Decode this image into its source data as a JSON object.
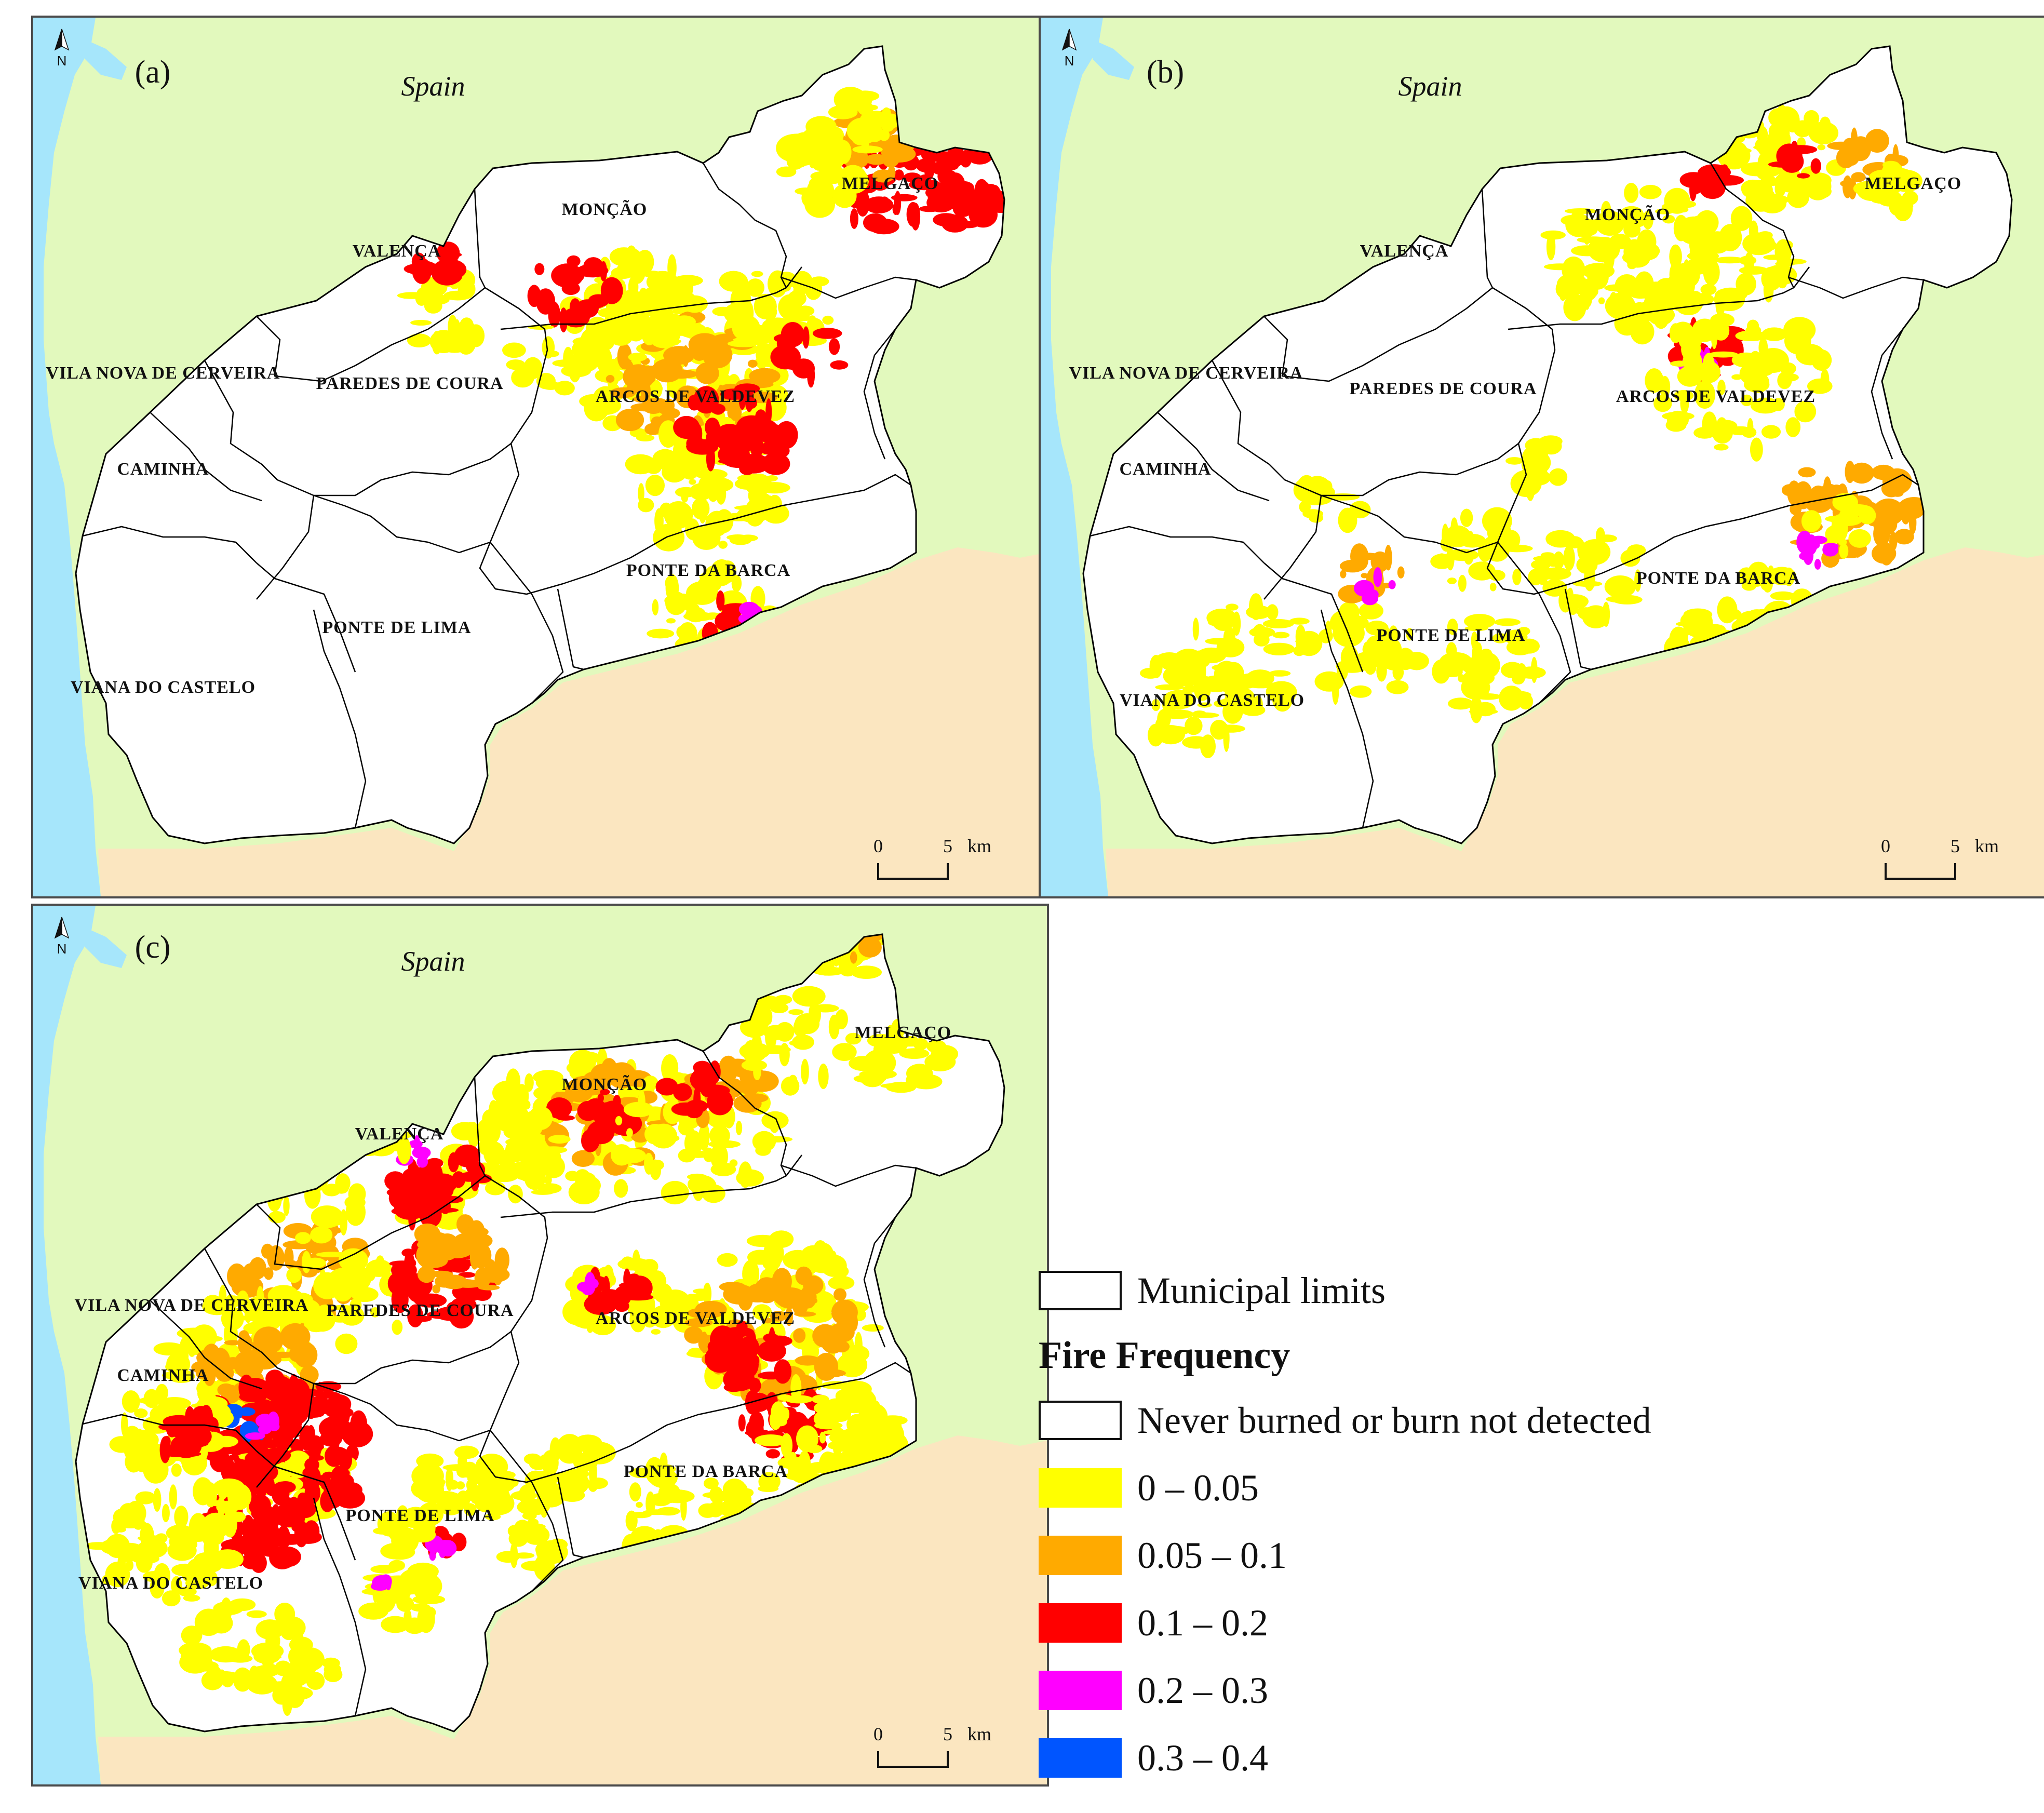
{
  "panels": [
    {
      "id": "a",
      "label": "(a)"
    },
    {
      "id": "b",
      "label": "(b)"
    },
    {
      "id": "c",
      "label": "(c)"
    }
  ],
  "country_label": "Spain",
  "north_label": "N",
  "scale": {
    "zero": "0",
    "five": "5",
    "unit": "km"
  },
  "municipalities": {
    "melgaco": "MELGAÇO",
    "moncao": "MONÇÃO",
    "valenca": "VALENÇA",
    "vila_nova": "VILA NOVA DE CERVEIRA",
    "paredes": "PAREDES DE COURA",
    "arcos": "ARCOS DE VALDEVEZ",
    "caminha": "CAMINHA",
    "ponte_barca": "PONTE DA BARCA",
    "ponte_lima": "PONTE DE LIMA",
    "viana": "VIANA DO CASTELO"
  },
  "legend": {
    "municipal_limits": "Municipal limits",
    "title": "Fire Frequency",
    "never": "Never burned or burn not detected",
    "classes": [
      {
        "label": "0 – 0.05",
        "color": "#ffff00"
      },
      {
        "label": "0.05 – 0.1",
        "color": "#ffaa00"
      },
      {
        "label": "0.1 – 0.2",
        "color": "#ff0000"
      },
      {
        "label": "0.2 – 0.3",
        "color": "#ff00ff"
      },
      {
        "label": "0.3 – 0.4",
        "color": "#0055ff"
      }
    ]
  },
  "colors": {
    "sea": "#a6e6fb",
    "spain": "#e2f9bd",
    "portugal_south": "#fbe6c0",
    "region": "#ffffff",
    "border": "#000000"
  }
}
